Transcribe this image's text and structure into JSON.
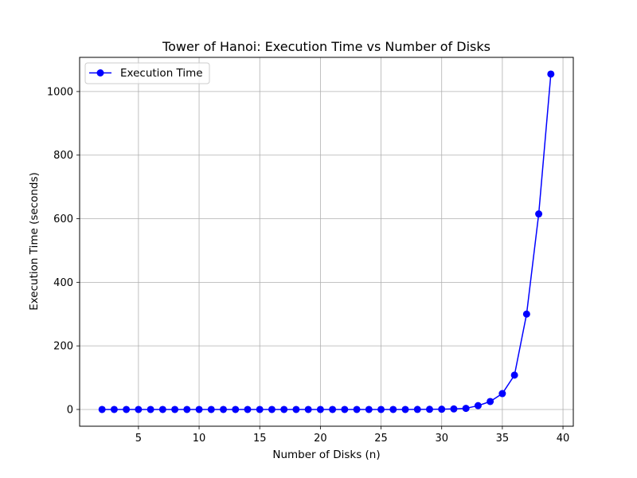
{
  "chart_data": {
    "type": "line",
    "title": "Tower of Hanoi: Execution Time vs Number of Disks",
    "xlabel": "Number of Disks (n)",
    "ylabel": "Execution Time (seconds)",
    "xlim": [
      0.15,
      40.85
    ],
    "ylim": [
      -52.7,
      1107.5
    ],
    "xticks": [
      5,
      10,
      15,
      20,
      25,
      30,
      35,
      40
    ],
    "yticks": [
      0,
      200,
      400,
      600,
      800,
      1000
    ],
    "grid": true,
    "legend_position": "top-left",
    "series": [
      {
        "name": "Execution Time",
        "color": "#0000ff",
        "marker": "circle",
        "x": [
          2,
          3,
          4,
          5,
          6,
          7,
          8,
          9,
          10,
          11,
          12,
          13,
          14,
          15,
          16,
          17,
          18,
          19,
          20,
          21,
          22,
          23,
          24,
          25,
          26,
          27,
          28,
          29,
          30,
          31,
          32,
          33,
          34,
          35,
          36,
          37,
          38,
          39
        ],
        "y": [
          0,
          0,
          0,
          0,
          0,
          0,
          0,
          0,
          0,
          0,
          0,
          0,
          0,
          0,
          0,
          0,
          0,
          0,
          0,
          0,
          0,
          0,
          0,
          0,
          0,
          0,
          0.1,
          0.4,
          0.8,
          1.7,
          3.5,
          12,
          25,
          50,
          108,
          300,
          615,
          1055
        ]
      }
    ]
  }
}
